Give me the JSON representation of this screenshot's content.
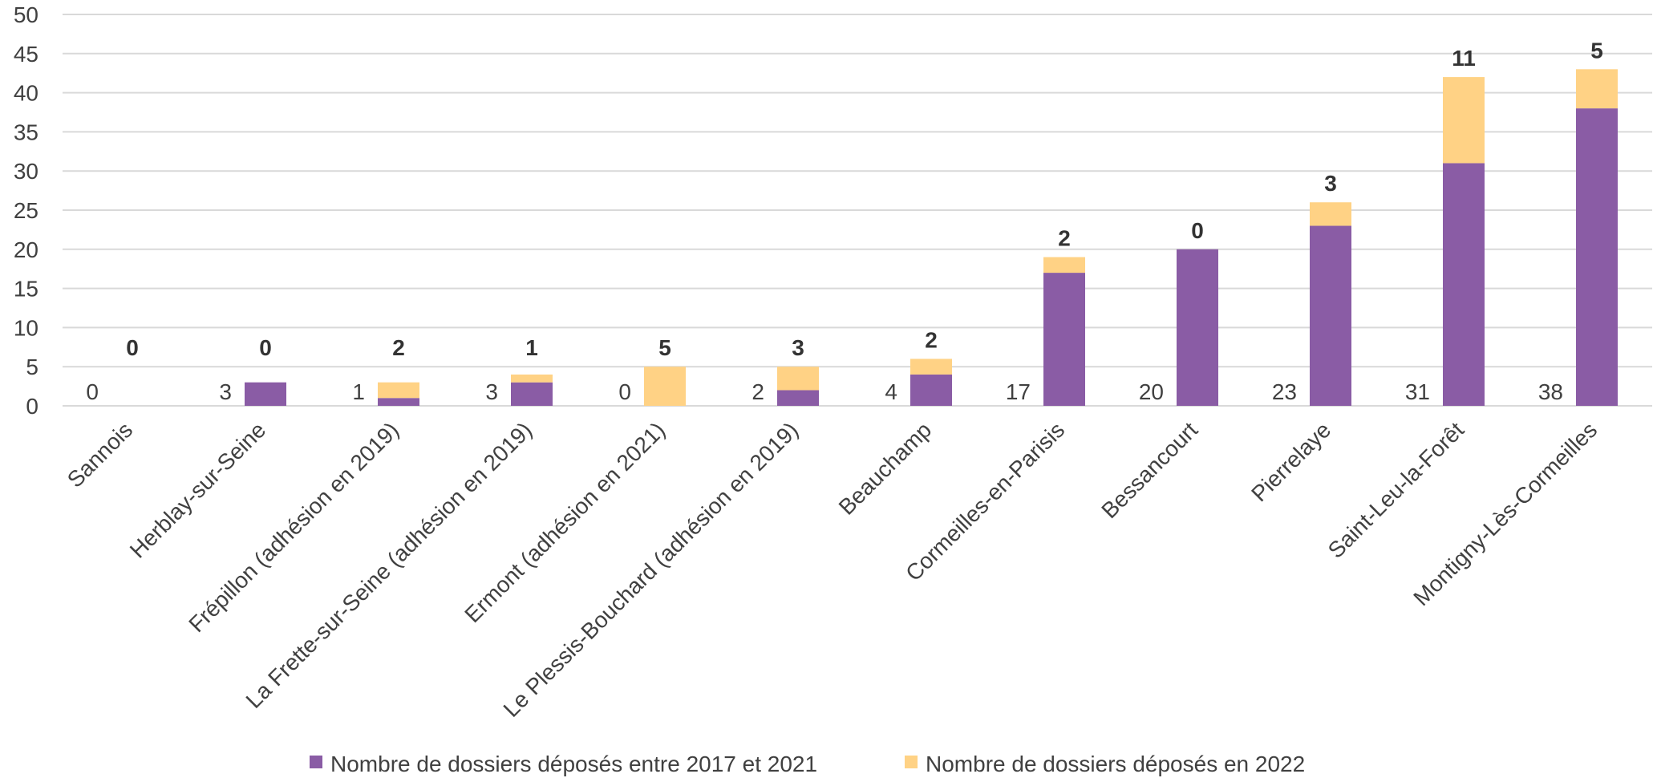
{
  "chart_data": {
    "type": "bar",
    "stacked": true,
    "categories": [
      "Sannois",
      "Herblay-sur-Seine",
      "Frépillon (adhésion en 2019)",
      "La Frette-sur-Seine (adhésion en 2019)",
      "Ermont (adhésion en 2021)",
      "Le Plessis-Bouchard (adhésion en 2019)",
      "Beauchamp",
      "Cormeilles-en-Parisis",
      "Bessancourt",
      "Pierrelaye",
      "Saint-Leu-la-Forêt",
      "Montigny-Lès-Cormeilles"
    ],
    "series": [
      {
        "name": "Nombre de dossiers déposés entre 2017 et 2021",
        "color": "#8A5CA5",
        "values": [
          0,
          3,
          1,
          3,
          0,
          2,
          4,
          17,
          20,
          23,
          31,
          38
        ]
      },
      {
        "name": "Nombre de dossiers déposés en 2022",
        "color": "#FFD285",
        "values": [
          0,
          0,
          2,
          1,
          5,
          3,
          2,
          2,
          0,
          3,
          11,
          5
        ]
      }
    ],
    "y_ticks": [
      "0",
      "5",
      "10",
      "15",
      "20",
      "25",
      "30",
      "35",
      "40",
      "45",
      "50"
    ],
    "ylim": [
      0,
      50
    ],
    "grid": "horizontal",
    "legend_position": "bottom",
    "title": "",
    "xlabel": "",
    "ylabel": ""
  }
}
